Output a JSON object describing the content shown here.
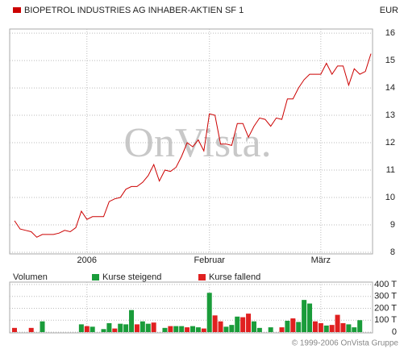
{
  "chart_data": [
    {
      "type": "line",
      "title": "BIOPETROL INDUSTRIES AG INHABER-AKTIEN SF 1",
      "currency": "EUR",
      "watermark": "OnVista.",
      "categories": [
        null,
        null,
        null,
        null,
        null,
        null,
        null,
        null,
        null,
        null,
        null,
        null,
        null,
        "2006",
        null,
        null,
        null,
        null,
        null,
        null,
        null,
        null,
        null,
        null,
        null,
        null,
        null,
        null,
        null,
        null,
        null,
        null,
        null,
        null,
        null,
        "Februar",
        null,
        null,
        null,
        null,
        null,
        null,
        null,
        null,
        null,
        null,
        null,
        null,
        null,
        null,
        null,
        null,
        null,
        null,
        null,
        "März",
        null,
        null,
        null,
        null,
        null,
        null,
        null,
        null,
        null
      ],
      "series": [
        {
          "name": "BIOPETROL INDUSTRIES AG INHABER-AKTIEN SF 1",
          "color": "#cc0000",
          "values": [
            9.15,
            8.85,
            8.8,
            8.75,
            8.55,
            8.65,
            8.65,
            8.65,
            8.7,
            8.8,
            8.75,
            8.9,
            9.5,
            9.2,
            9.3,
            9.3,
            9.3,
            9.85,
            9.95,
            10.0,
            10.3,
            10.4,
            10.4,
            10.55,
            10.8,
            11.2,
            10.6,
            11.0,
            10.95,
            11.1,
            11.5,
            12.0,
            11.85,
            12.1,
            11.7,
            13.05,
            13.0,
            11.95,
            11.95,
            11.9,
            12.7,
            12.7,
            12.2,
            12.6,
            12.9,
            12.85,
            12.6,
            12.9,
            12.85,
            13.6,
            13.6,
            14.0,
            14.3,
            14.5,
            14.5,
            14.5,
            14.9,
            14.5,
            14.8,
            14.8,
            14.1,
            14.7,
            14.5,
            14.6,
            15.25
          ]
        }
      ],
      "ylim": [
        7.94,
        16.15
      ],
      "yticks": [
        16,
        15,
        14,
        13,
        12,
        11,
        10,
        9,
        8
      ],
      "grid": true
    },
    {
      "type": "bar",
      "title": "Volumen",
      "footer": "© 1999-2006 OnVista Gruppe",
      "series": [
        {
          "name": "Kurse steigend",
          "color": "#1a9c3a",
          "values": [
            null,
            null,
            null,
            null,
            null,
            90,
            null,
            null,
            null,
            null,
            null,
            null,
            65,
            null,
            45,
            null,
            25,
            75,
            null,
            70,
            65,
            185,
            null,
            90,
            70,
            null,
            null,
            35,
            null,
            50,
            50,
            null,
            50,
            40,
            null,
            330,
            null,
            null,
            45,
            60,
            130,
            null,
            null,
            90,
            35,
            null,
            40,
            null,
            null,
            95,
            null,
            85,
            270,
            240,
            null,
            null,
            55,
            null,
            null,
            null,
            65,
            40,
            100,
            null,
            null
          ]
        },
        {
          "name": "Kurse fallend",
          "color": "#e02020",
          "values": [
            35,
            null,
            null,
            35,
            null,
            null,
            null,
            null,
            null,
            null,
            null,
            null,
            null,
            50,
            null,
            null,
            null,
            null,
            30,
            null,
            null,
            null,
            65,
            null,
            null,
            80,
            null,
            null,
            50,
            null,
            null,
            40,
            null,
            null,
            30,
            null,
            140,
            90,
            null,
            null,
            null,
            125,
            155,
            null,
            null,
            null,
            null,
            null,
            40,
            null,
            115,
            null,
            null,
            null,
            90,
            75,
            null,
            60,
            145,
            75,
            null,
            null,
            null,
            null,
            null
          ]
        }
      ],
      "ylim": [
        0,
        420
      ],
      "yticks": [
        0,
        {
          "value": 100,
          "label": "100 T"
        },
        {
          "value": 200,
          "label": "200 T"
        },
        {
          "value": 300,
          "label": "300 T"
        },
        {
          "value": 400,
          "label": "400 T"
        }
      ],
      "grid": true
    }
  ]
}
